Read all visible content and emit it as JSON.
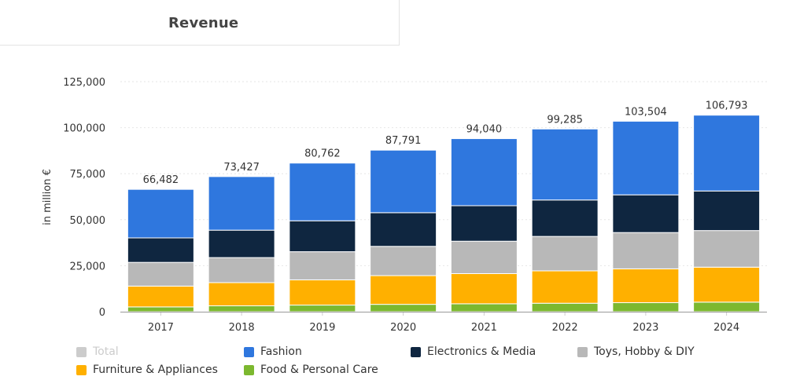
{
  "header": {
    "tab_title": "Revenue"
  },
  "chart_data": {
    "type": "bar",
    "stacked": true,
    "categories": [
      "2017",
      "2018",
      "2019",
      "2020",
      "2021",
      "2022",
      "2023",
      "2024"
    ],
    "ylabel": "in million €",
    "ylim": [
      0,
      125000
    ],
    "yticks": [
      0,
      25000,
      50000,
      75000,
      100000,
      125000
    ],
    "ytick_labels": [
      "0",
      "25,000",
      "50,000",
      "75,000",
      "100,000",
      "125,000"
    ],
    "grid": true,
    "legend_position": "bottom-left",
    "totals": [
      66482,
      73427,
      80762,
      87791,
      94040,
      99285,
      103504,
      106793
    ],
    "total_labels": [
      "66,482",
      "73,427",
      "80,762",
      "87,791",
      "94,040",
      "99,285",
      "103,504",
      "106,793"
    ],
    "series": [
      {
        "name": "Food & Personal Care",
        "color": "#7cb82f",
        "values": [
          2600,
          3200,
          3600,
          4000,
          4300,
          4600,
          4900,
          5200
        ]
      },
      {
        "name": "Furniture & Appliances",
        "color": "#ffb000",
        "values": [
          11300,
          12600,
          13700,
          15600,
          16400,
          17600,
          18400,
          19000
        ]
      },
      {
        "name": "Toys, Hobby & DIY",
        "color": "#b8b8b8",
        "values": [
          12900,
          13600,
          15300,
          15900,
          17600,
          18700,
          19700,
          19900
        ]
      },
      {
        "name": "Electronics & Media",
        "color": "#0f2640",
        "values": [
          13300,
          14900,
          16800,
          18300,
          19300,
          19800,
          20500,
          21500
        ]
      },
      {
        "name": "Fashion",
        "color": "#2f77de",
        "values": [
          26382,
          29127,
          31362,
          33991,
          36440,
          38585,
          40004,
          41193
        ]
      }
    ],
    "legend": [
      {
        "name": "Total",
        "color": "#cccccc",
        "hidden": true
      },
      {
        "name": "Fashion",
        "color": "#2f77de",
        "hidden": false
      },
      {
        "name": "Electronics & Media",
        "color": "#0f2640",
        "hidden": false
      },
      {
        "name": "Toys, Hobby & DIY",
        "color": "#b8b8b8",
        "hidden": false
      },
      {
        "name": "Furniture & Appliances",
        "color": "#ffb000",
        "hidden": false
      },
      {
        "name": "Food & Personal Care",
        "color": "#7cb82f",
        "hidden": false
      }
    ]
  }
}
